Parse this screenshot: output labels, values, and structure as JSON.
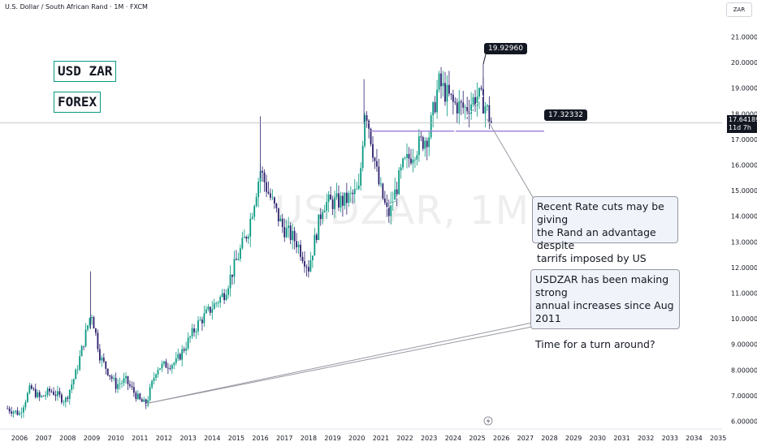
{
  "header": {
    "title": "U.S. Dollar / South African Rand · 1M · FXCM",
    "currency_badge": "ZAR"
  },
  "tags": {
    "pair": "USD ZAR",
    "market": "FOREX"
  },
  "watermark": "USDZAR, 1M",
  "price_labels": {
    "high": "19.92960",
    "level": "17.32332"
  },
  "current_price": {
    "value": "17.64189",
    "countdown": "11d 7h"
  },
  "callouts": {
    "rate_cuts": "Recent Rate cuts may be giving\nthe Rand an advantage despite\ntarrifs imposed by US",
    "annual": "USDZAR has been making strong\nannual increases since Aug 2011\n\nTime for a turn around?"
  },
  "colors": {
    "up": "#089981",
    "down": "#2a1f6e",
    "horizontal_line": "#9c7ad6",
    "current_line": "#b2b5be",
    "curve": "#ffffff"
  },
  "chart_data": {
    "type": "candlestick",
    "title": "U.S. Dollar / South African Rand · 1M · FXCM",
    "x_axis": {
      "ticks": [
        "2006",
        "2007",
        "2008",
        "2009",
        "2010",
        "2011",
        "2012",
        "2013",
        "2014",
        "2015",
        "2016",
        "2017",
        "2018",
        "2019",
        "2020",
        "2021",
        "2022",
        "2023",
        "2024",
        "2025",
        "2026",
        "2027",
        "2028",
        "2029",
        "2030",
        "2031",
        "2032",
        "2033",
        "2034",
        "2035"
      ]
    },
    "y_axis": {
      "range": [
        5.65,
        21.75
      ],
      "ticks": [
        "21.00000",
        "20.00000",
        "19.00000",
        "18.00000",
        "17.00000",
        "16.00000",
        "15.00000",
        "14.00000",
        "13.00000",
        "12.00000",
        "11.00000",
        "10.00000",
        "9.00000",
        "8.00000",
        "7.00000",
        "6.00000"
      ],
      "position": "right"
    },
    "series_keyframes": [
      [
        2005.5,
        6.5
      ],
      [
        2006.0,
        6.3
      ],
      [
        2006.45,
        7.3
      ],
      [
        2006.85,
        6.9
      ],
      [
        2007.3,
        7.2
      ],
      [
        2007.9,
        6.8
      ],
      [
        2008.35,
        7.9
      ],
      [
        2008.9,
        10.0
      ],
      [
        2009.0,
        10.2
      ],
      [
        2009.35,
        8.5
      ],
      [
        2010.0,
        7.4
      ],
      [
        2010.4,
        7.6
      ],
      [
        2011.0,
        6.8
      ],
      [
        2011.25,
        6.65
      ],
      [
        2011.7,
        8.1
      ],
      [
        2012.5,
        8.3
      ],
      [
        2013.4,
        9.8
      ],
      [
        2014.5,
        11.0
      ],
      [
        2015.5,
        13.5
      ],
      [
        2016.0,
        15.8
      ],
      [
        2016.3,
        15.0
      ],
      [
        2016.9,
        13.6
      ],
      [
        2017.5,
        13.0
      ],
      [
        2018.0,
        12.0
      ],
      [
        2018.6,
        14.5
      ],
      [
        2019.5,
        14.6
      ],
      [
        2020.1,
        15.0
      ],
      [
        2020.35,
        18.4
      ],
      [
        2020.9,
        15.3
      ],
      [
        2021.3,
        14.0
      ],
      [
        2021.9,
        15.9
      ],
      [
        2022.4,
        16.6
      ],
      [
        2023.0,
        17.2
      ],
      [
        2023.4,
        19.2
      ],
      [
        2024.0,
        18.4
      ],
      [
        2024.5,
        18.2
      ],
      [
        2025.0,
        18.7
      ],
      [
        2025.3,
        18.4
      ],
      [
        2025.6,
        17.64
      ]
    ],
    "annotations": {
      "high_marker": 19.9296,
      "horizontal_level": 17.32332,
      "current_price": 17.64189
    }
  }
}
